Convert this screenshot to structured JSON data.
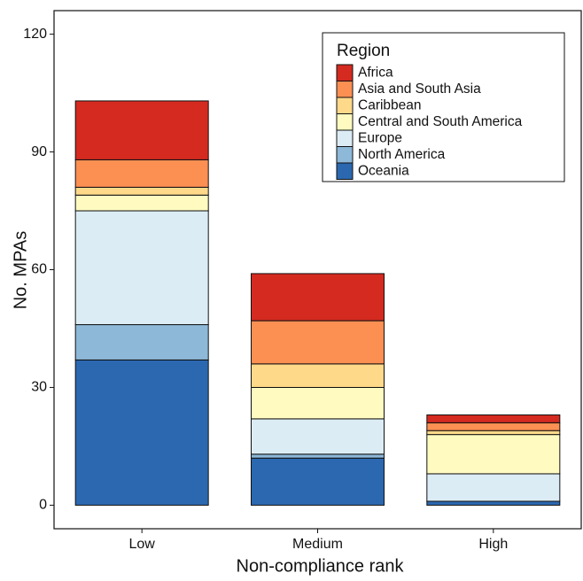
{
  "chart_data": {
    "type": "stacked-bar",
    "x_label": "Non-compliance rank",
    "y_label": "No. MPAs",
    "categories": [
      "Low",
      "Medium",
      "High"
    ],
    "series": [
      {
        "name": "Oceania",
        "color": "#2b68b0",
        "values": [
          37,
          12,
          1
        ]
      },
      {
        "name": "North America",
        "color": "#8db8d8",
        "values": [
          9,
          1,
          0
        ]
      },
      {
        "name": "Europe",
        "color": "#dcecf5",
        "values": [
          29,
          9,
          7
        ]
      },
      {
        "name": "Central and South America",
        "color": "#fffbc0",
        "values": [
          4,
          8,
          10
        ]
      },
      {
        "name": "Caribbean",
        "color": "#fed98a",
        "values": [
          2,
          6,
          1
        ]
      },
      {
        "name": "Asia and South Asia",
        "color": "#fc8f52",
        "values": [
          7,
          11,
          2
        ]
      },
      {
        "name": "Africa",
        "color": "#d42a20",
        "values": [
          15,
          12,
          2
        ]
      }
    ],
    "legend_title": "Region",
    "legend_position": "top-right",
    "ylim": [
      -6,
      126
    ],
    "yticks": [
      0,
      30,
      60,
      90,
      120
    ]
  }
}
